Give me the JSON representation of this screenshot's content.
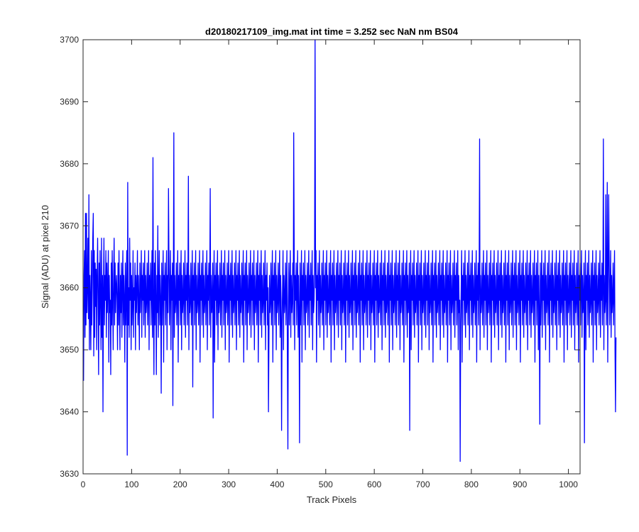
{
  "chart_data": {
    "type": "line",
    "title": "d20180217109_img.mat int time = 3.252 sec  NaN nm BS04",
    "xlabel": "Track Pixels",
    "ylabel": "Signal (ADU) at pixel 210",
    "xlim": [
      0,
      1024
    ],
    "ylim": [
      3630,
      3700
    ],
    "xticks": [
      0,
      100,
      200,
      300,
      400,
      500,
      600,
      700,
      800,
      900,
      1000
    ],
    "yticks": [
      3630,
      3640,
      3650,
      3660,
      3670,
      3680,
      3690,
      3700
    ],
    "grid": false,
    "legend": "none",
    "series": [
      {
        "color": "#0000ff",
        "x_start": 1,
        "values": [
          3645,
          3662,
          3666,
          3652,
          3672,
          3654,
          3672,
          3656,
          3660,
          3668,
          3655,
          3675,
          3650,
          3662,
          3658,
          3650,
          3666,
          3654,
          3660,
          3668,
          3672,
          3649,
          3666,
          3652,
          3664,
          3657,
          3663,
          3650,
          3662,
          3668,
          3658,
          3646,
          3664,
          3654,
          3666,
          3658,
          3650,
          3668,
          3652,
          3662,
          3640,
          3660,
          3668,
          3654,
          3662,
          3658,
          3666,
          3652,
          3664,
          3656,
          3660,
          3666,
          3648,
          3662,
          3656,
          3658,
          3646,
          3664,
          3654,
          3666,
          3658,
          3650,
          3662,
          3668,
          3654,
          3664,
          3656,
          3660,
          3662,
          3658,
          3650,
          3664,
          3654,
          3666,
          3658,
          3650,
          3662,
          3656,
          3664,
          3652,
          3660,
          3666,
          3654,
          3662,
          3658,
          3648,
          3664,
          3654,
          3660,
          3666,
          3633,
          3677,
          3654,
          3660,
          3652,
          3668,
          3658,
          3664,
          3650,
          3662,
          3654,
          3658,
          3666,
          3652,
          3660,
          3658,
          3664,
          3650,
          3662,
          3656,
          3660,
          3666,
          3654,
          3662,
          3658,
          3650,
          3664,
          3656,
          3660,
          3666,
          3652,
          3662,
          3658,
          3664,
          3654,
          3660,
          3666,
          3652,
          3662,
          3656,
          3658,
          3664,
          3654,
          3660,
          3666,
          3650,
          3662,
          3658,
          3664,
          3654,
          3660,
          3666,
          3652,
          3681,
          3656,
          3646,
          3664,
          3654,
          3666,
          3658,
          3646,
          3662,
          3656,
          3670,
          3652,
          3660,
          3666,
          3654,
          3662,
          3658,
          3643,
          3664,
          3654,
          3660,
          3666,
          3648,
          3662,
          3658,
          3664,
          3654,
          3660,
          3666,
          3650,
          3662,
          3656,
          3676,
          3664,
          3654,
          3660,
          3666,
          3650,
          3662,
          3658,
          3664,
          3641,
          3660,
          3685,
          3652,
          3662,
          3656,
          3658,
          3664,
          3654,
          3660,
          3666,
          3648,
          3662,
          3658,
          3664,
          3654,
          3660,
          3666,
          3650,
          3662,
          3656,
          3658,
          3664,
          3654,
          3660,
          3666,
          3652,
          3662,
          3658,
          3664,
          3654,
          3660,
          3678,
          3650,
          3662,
          3656,
          3658,
          3664,
          3654,
          3660,
          3666,
          3644,
          3662,
          3658,
          3664,
          3654,
          3660,
          3666,
          3650,
          3662,
          3656,
          3658,
          3664,
          3654,
          3660,
          3666,
          3648,
          3662,
          3658,
          3664,
          3654,
          3660,
          3666,
          3652,
          3662,
          3656,
          3658,
          3664,
          3654,
          3660,
          3666,
          3650,
          3662,
          3658,
          3664,
          3654,
          3660,
          3676,
          3652,
          3662,
          3656,
          3658,
          3664,
          3639,
          3660,
          3666,
          3648,
          3662,
          3658,
          3664,
          3654,
          3660,
          3666,
          3650,
          3662,
          3656,
          3658,
          3664,
          3654,
          3660,
          3666,
          3652,
          3662,
          3658,
          3664,
          3654,
          3660,
          3666,
          3650,
          3662,
          3656,
          3658,
          3664,
          3654,
          3660,
          3666,
          3648,
          3662,
          3658,
          3664,
          3654,
          3660,
          3666,
          3652,
          3662,
          3656,
          3658,
          3664,
          3654,
          3660,
          3666,
          3650,
          3662,
          3658,
          3664,
          3654,
          3660,
          3666,
          3652,
          3662,
          3656,
          3658,
          3664,
          3654,
          3660,
          3666,
          3648,
          3662,
          3658,
          3664,
          3654,
          3660,
          3666,
          3650,
          3662,
          3656,
          3658,
          3664,
          3654,
          3660,
          3666,
          3652,
          3662,
          3658,
          3664,
          3654,
          3660,
          3666,
          3650,
          3662,
          3656,
          3658,
          3664,
          3654,
          3660,
          3666,
          3648,
          3662,
          3658,
          3664,
          3654,
          3660,
          3666,
          3652,
          3662,
          3656,
          3658,
          3664,
          3654,
          3660,
          3666,
          3650,
          3662,
          3658,
          3664,
          3654,
          3660,
          3640,
          3652,
          3662,
          3656,
          3658,
          3664,
          3654,
          3660,
          3666,
          3648,
          3662,
          3658,
          3664,
          3654,
          3660,
          3666,
          3650,
          3662,
          3656,
          3658,
          3664,
          3654,
          3660,
          3666,
          3652,
          3662,
          3658,
          3637,
          3654,
          3660,
          3666,
          3650,
          3662,
          3656,
          3658,
          3664,
          3654,
          3660,
          3666,
          3648,
          3634,
          3658,
          3664,
          3654,
          3660,
          3666,
          3652,
          3662,
          3656,
          3658,
          3664,
          3654,
          3685,
          3666,
          3650,
          3662,
          3658,
          3664,
          3654,
          3660,
          3666,
          3652,
          3662,
          3656,
          3635,
          3664,
          3654,
          3660,
          3666,
          3648,
          3662,
          3658,
          3664,
          3654,
          3660,
          3666,
          3650,
          3662,
          3656,
          3658,
          3664,
          3654,
          3660,
          3666,
          3652,
          3662,
          3658,
          3664,
          3654,
          3660,
          3666,
          3650,
          3662,
          3656,
          3658,
          3664,
          3700,
          3660,
          3666,
          3648,
          3662,
          3658,
          3664,
          3654,
          3660,
          3666,
          3652,
          3662,
          3656,
          3658,
          3664,
          3654,
          3660,
          3666,
          3650,
          3662,
          3658,
          3664,
          3654,
          3660,
          3666,
          3652,
          3662,
          3656,
          3658,
          3664,
          3654,
          3660,
          3666,
          3648,
          3662,
          3658,
          3664,
          3654,
          3660,
          3666,
          3650,
          3662,
          3656,
          3658,
          3664,
          3654,
          3660,
          3666,
          3652,
          3662,
          3658,
          3664,
          3654,
          3660,
          3666,
          3650,
          3662,
          3656,
          3658,
          3664,
          3654,
          3660,
          3666,
          3648,
          3662,
          3658,
          3664,
          3654,
          3660,
          3666,
          3652,
          3662,
          3656,
          3658,
          3664,
          3654,
          3660,
          3666,
          3650,
          3662,
          3658,
          3664,
          3654,
          3660,
          3666,
          3652,
          3662,
          3656,
          3658,
          3664,
          3654,
          3660,
          3666,
          3648,
          3662,
          3658,
          3664,
          3654,
          3660,
          3666,
          3650,
          3662,
          3656,
          3658,
          3664,
          3654,
          3660,
          3666,
          3652,
          3662,
          3658,
          3664,
          3654,
          3660,
          3666,
          3650,
          3662,
          3656,
          3658,
          3664,
          3654,
          3660,
          3666,
          3648,
          3662,
          3658,
          3664,
          3654,
          3660,
          3666,
          3652,
          3662,
          3656,
          3658,
          3664,
          3654,
          3660,
          3666,
          3650,
          3662,
          3658,
          3664,
          3654,
          3660,
          3666,
          3652,
          3662,
          3656,
          3658,
          3664,
          3654,
          3660,
          3666,
          3648,
          3662,
          3658,
          3664,
          3654,
          3660,
          3666,
          3650,
          3662,
          3656,
          3658,
          3664,
          3654,
          3660,
          3666,
          3652,
          3662,
          3658,
          3664,
          3654,
          3660,
          3666,
          3650,
          3662,
          3656,
          3658,
          3664,
          3654,
          3660,
          3666,
          3648,
          3662,
          3658,
          3664,
          3654,
          3660,
          3666,
          3652,
          3662,
          3656,
          3658,
          3664,
          3637,
          3660,
          3666,
          3650,
          3662,
          3658,
          3664,
          3654,
          3660,
          3666,
          3652,
          3662,
          3656,
          3658,
          3664,
          3654,
          3660,
          3666,
          3648,
          3662,
          3658,
          3664,
          3654,
          3660,
          3666,
          3650,
          3662,
          3656,
          3658,
          3664,
          3654,
          3660,
          3666,
          3652,
          3662,
          3658,
          3664,
          3654,
          3660,
          3666,
          3650,
          3662,
          3656,
          3658,
          3664,
          3654,
          3660,
          3666,
          3648,
          3662,
          3658,
          3664,
          3654,
          3660,
          3666,
          3652,
          3662,
          3656,
          3658,
          3664,
          3654,
          3660,
          3666,
          3650,
          3662,
          3658,
          3664,
          3654,
          3660,
          3666,
          3652,
          3662,
          3656,
          3658,
          3664,
          3654,
          3660,
          3666,
          3648,
          3662,
          3658,
          3664,
          3654,
          3660,
          3666,
          3650,
          3662,
          3656,
          3658,
          3664,
          3654,
          3660,
          3666,
          3652,
          3662,
          3658,
          3664,
          3654,
          3660,
          3666,
          3650,
          3662,
          3656,
          3658,
          3632,
          3654,
          3660,
          3666,
          3648,
          3662,
          3658,
          3664,
          3654,
          3660,
          3666,
          3652,
          3662,
          3656,
          3658,
          3664,
          3654,
          3660,
          3666,
          3650,
          3662,
          3658,
          3664,
          3654,
          3660,
          3666,
          3652,
          3662,
          3656,
          3658,
          3664,
          3654,
          3660,
          3666,
          3648,
          3662,
          3658,
          3664,
          3654,
          3660,
          3684,
          3650,
          3662,
          3656,
          3658,
          3664,
          3654,
          3660,
          3666,
          3652,
          3662,
          3658,
          3664,
          3654,
          3660,
          3666,
          3650,
          3662,
          3656,
          3658,
          3664,
          3654,
          3660,
          3666,
          3648,
          3662,
          3658,
          3664,
          3654,
          3660,
          3666,
          3652,
          3662,
          3656,
          3658,
          3664,
          3654,
          3660,
          3666,
          3650,
          3662,
          3658,
          3664,
          3654,
          3660,
          3666,
          3652,
          3662,
          3656,
          3658,
          3664,
          3654,
          3660,
          3666,
          3648,
          3662,
          3658,
          3664,
          3654,
          3660,
          3666,
          3650,
          3662,
          3656,
          3658,
          3664,
          3654,
          3660,
          3666,
          3652,
          3662,
          3658,
          3664,
          3654,
          3660,
          3666,
          3650,
          3662,
          3656,
          3658,
          3664,
          3654,
          3660,
          3666,
          3648,
          3662,
          3658,
          3664,
          3654,
          3660,
          3666,
          3652,
          3662,
          3656,
          3658,
          3664,
          3654,
          3660,
          3666,
          3650,
          3662,
          3658,
          3664,
          3654,
          3660,
          3666,
          3652,
          3662,
          3656,
          3658,
          3664,
          3654,
          3660,
          3666,
          3648,
          3662,
          3658,
          3664,
          3654,
          3660,
          3666,
          3650,
          3662,
          3656,
          3638,
          3664,
          3654,
          3660,
          3666,
          3652,
          3662,
          3658,
          3664,
          3654,
          3660,
          3666,
          3650,
          3662,
          3656,
          3658,
          3664,
          3654,
          3660,
          3666,
          3648,
          3662,
          3658,
          3664,
          3654,
          3660,
          3666,
          3652,
          3662,
          3656,
          3658,
          3664,
          3654,
          3660,
          3666,
          3650,
          3662,
          3658,
          3664,
          3654,
          3660,
          3666,
          3652,
          3662,
          3656,
          3658,
          3664,
          3654,
          3660,
          3666,
          3648,
          3662,
          3658,
          3664,
          3654,
          3660,
          3666,
          3650,
          3662,
          3656,
          3658,
          3664,
          3654,
          3660,
          3666,
          3652,
          3662,
          3658,
          3664,
          3654,
          3660,
          3666,
          3650,
          3662,
          3656,
          3658,
          3664,
          3654,
          3660,
          3666,
          3648,
          3662,
          3658,
          3664,
          3654,
          3660,
          3666,
          3652,
          3662,
          3656,
          3658,
          3664,
          3635,
          3660,
          3666,
          3650,
          3662,
          3658,
          3664,
          3654,
          3660,
          3666,
          3652,
          3662,
          3656,
          3658,
          3664,
          3654,
          3660,
          3666,
          3648,
          3662,
          3658,
          3664,
          3654,
          3660,
          3666,
          3650,
          3662,
          3656,
          3658,
          3664,
          3654,
          3660,
          3666,
          3652,
          3662,
          3658,
          3664,
          3654,
          3660,
          3684,
          3650,
          3662,
          3656,
          3658,
          3675,
          3654,
          3660,
          3677,
          3648,
          3662,
          3675,
          3664,
          3654,
          3660,
          3666,
          3652,
          3662,
          3656,
          3658,
          3664,
          3654,
          3660,
          3666,
          3650,
          3640,
          3652
        ]
      }
    ]
  }
}
